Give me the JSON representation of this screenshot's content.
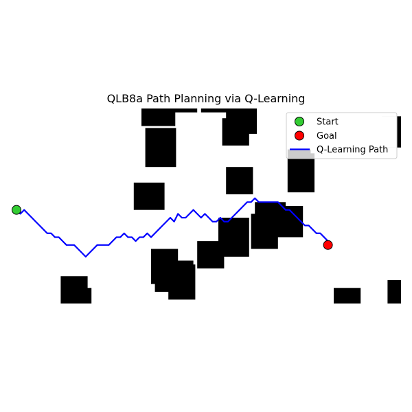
{
  "chart_data": {
    "type": "scatter",
    "title": "QLB8a Path Planning via Q-Learning",
    "xlabel": "",
    "ylabel": "",
    "axes_visible": false,
    "grid": false,
    "xlim": [
      0,
      100
    ],
    "ylim": [
      0,
      50
    ],
    "legend": {
      "position": "top-right",
      "entries": [
        {
          "label": "Start",
          "kind": "marker",
          "color": "#33cc33"
        },
        {
          "label": "Goal",
          "kind": "marker",
          "color": "#ff0000"
        },
        {
          "label": "Q-Learning Path",
          "kind": "line",
          "color": "#0000ff"
        }
      ]
    },
    "start": {
      "x": 0,
      "y": 24
    },
    "goal": {
      "x": 81,
      "y": 15
    },
    "obstacles": [
      {
        "x0": 32.5,
        "y0": 45.5,
        "x1": 41.3,
        "y1": 50.0
      },
      {
        "x0": 33.5,
        "y0": 49.0,
        "x1": 47.0,
        "y1": 50.0
      },
      {
        "x0": 48.0,
        "y0": 49.0,
        "x1": 61.0,
        "y1": 50.0
      },
      {
        "x0": 54.5,
        "y0": 43.5,
        "x1": 62.5,
        "y1": 50.0
      },
      {
        "x0": 53.5,
        "y0": 40.5,
        "x1": 60.5,
        "y1": 47.5
      },
      {
        "x0": 33.5,
        "y0": 35.0,
        "x1": 41.5,
        "y1": 45.0
      },
      {
        "x0": 30.5,
        "y0": 24.0,
        "x1": 38.5,
        "y1": 31.0
      },
      {
        "x0": 54.5,
        "y0": 28.0,
        "x1": 61.5,
        "y1": 35.0
      },
      {
        "x0": 70.5,
        "y0": 28.5,
        "x1": 77.5,
        "y1": 39.5
      },
      {
        "x0": 61.0,
        "y0": 14.0,
        "x1": 68.0,
        "y1": 23.0
      },
      {
        "x0": 62.0,
        "y0": 18.0,
        "x1": 70.0,
        "y1": 26.0
      },
      {
        "x0": 67.5,
        "y0": 17.0,
        "x1": 74.5,
        "y1": 25.0
      },
      {
        "x0": 52.5,
        "y0": 12.0,
        "x1": 60.5,
        "y1": 22.0
      },
      {
        "x0": 47.0,
        "y0": 9.0,
        "x1": 54.0,
        "y1": 16.0
      },
      {
        "x0": 35.0,
        "y0": 5.0,
        "x1": 42.0,
        "y1": 14.0
      },
      {
        "x0": 36.0,
        "y0": 3.0,
        "x1": 46.0,
        "y1": 11.0
      },
      {
        "x0": 39.5,
        "y0": 1.0,
        "x1": 46.5,
        "y1": 10.0
      },
      {
        "x0": 11.5,
        "y0": 0.0,
        "x1": 18.5,
        "y1": 7.0
      },
      {
        "x0": 12.5,
        "y0": 0.0,
        "x1": 19.5,
        "y1": 4.0
      },
      {
        "x0": 82.5,
        "y0": 0.0,
        "x1": 89.5,
        "y1": 4.0
      },
      {
        "x0": 96.5,
        "y0": 0.0,
        "x1": 100.0,
        "y1": 6.0
      },
      {
        "x0": 95.0,
        "y0": 40.0,
        "x1": 100.0,
        "y1": 48.0
      }
    ],
    "free_cells": [
      {
        "x0": 72.5,
        "y0": 44.5,
        "x1": 83.5,
        "y1": 48.5
      },
      {
        "x0": 76.5,
        "y0": 38.5,
        "x1": 85.5,
        "y1": 46.5
      },
      {
        "x0": 94.5,
        "y0": 40.0,
        "x1": 99.0,
        "y1": 48.0
      }
    ],
    "series": [
      {
        "name": "Q-Learning Path",
        "color": "#0000ff",
        "points": [
          [
            0,
            24
          ],
          [
            1,
            23
          ],
          [
            2,
            24
          ],
          [
            3,
            23
          ],
          [
            4,
            22
          ],
          [
            5,
            21
          ],
          [
            6,
            20
          ],
          [
            7,
            19
          ],
          [
            8,
            18
          ],
          [
            9,
            18
          ],
          [
            10,
            17
          ],
          [
            11,
            17
          ],
          [
            12,
            16
          ],
          [
            13,
            15
          ],
          [
            14,
            15
          ],
          [
            15,
            15
          ],
          [
            16,
            14
          ],
          [
            17,
            13
          ],
          [
            18,
            12
          ],
          [
            19,
            13
          ],
          [
            20,
            14
          ],
          [
            21,
            15
          ],
          [
            22,
            15
          ],
          [
            23,
            15
          ],
          [
            24,
            15
          ],
          [
            25,
            16
          ],
          [
            26,
            17
          ],
          [
            27,
            17
          ],
          [
            28,
            18
          ],
          [
            29,
            17
          ],
          [
            30,
            17
          ],
          [
            31,
            16
          ],
          [
            32,
            17
          ],
          [
            33,
            17
          ],
          [
            34,
            18
          ],
          [
            35,
            17
          ],
          [
            36,
            18
          ],
          [
            37,
            19
          ],
          [
            38,
            20
          ],
          [
            39,
            21
          ],
          [
            40,
            22
          ],
          [
            41,
            21
          ],
          [
            42,
            23
          ],
          [
            43,
            22
          ],
          [
            44,
            22
          ],
          [
            45,
            23
          ],
          [
            46,
            24
          ],
          [
            47,
            23
          ],
          [
            48,
            22
          ],
          [
            49,
            23
          ],
          [
            50,
            22
          ],
          [
            51,
            21
          ],
          [
            52,
            21
          ],
          [
            53,
            22
          ],
          [
            54,
            21
          ],
          [
            55,
            21
          ],
          [
            56,
            22
          ],
          [
            57,
            23
          ],
          [
            58,
            24
          ],
          [
            59,
            25
          ],
          [
            60,
            26
          ],
          [
            61,
            26
          ],
          [
            62,
            27
          ],
          [
            63,
            26
          ],
          [
            64,
            26
          ],
          [
            65,
            26
          ],
          [
            66,
            26
          ],
          [
            67,
            26
          ],
          [
            68,
            26
          ],
          [
            69,
            25
          ],
          [
            70,
            24
          ],
          [
            71,
            24
          ],
          [
            72,
            23
          ],
          [
            73,
            22
          ],
          [
            74,
            21
          ],
          [
            75,
            20
          ],
          [
            76,
            20
          ],
          [
            77,
            19
          ],
          [
            78,
            18
          ],
          [
            79,
            18
          ],
          [
            80,
            17
          ],
          [
            81,
            16
          ],
          [
            81,
            15
          ]
        ]
      }
    ]
  }
}
